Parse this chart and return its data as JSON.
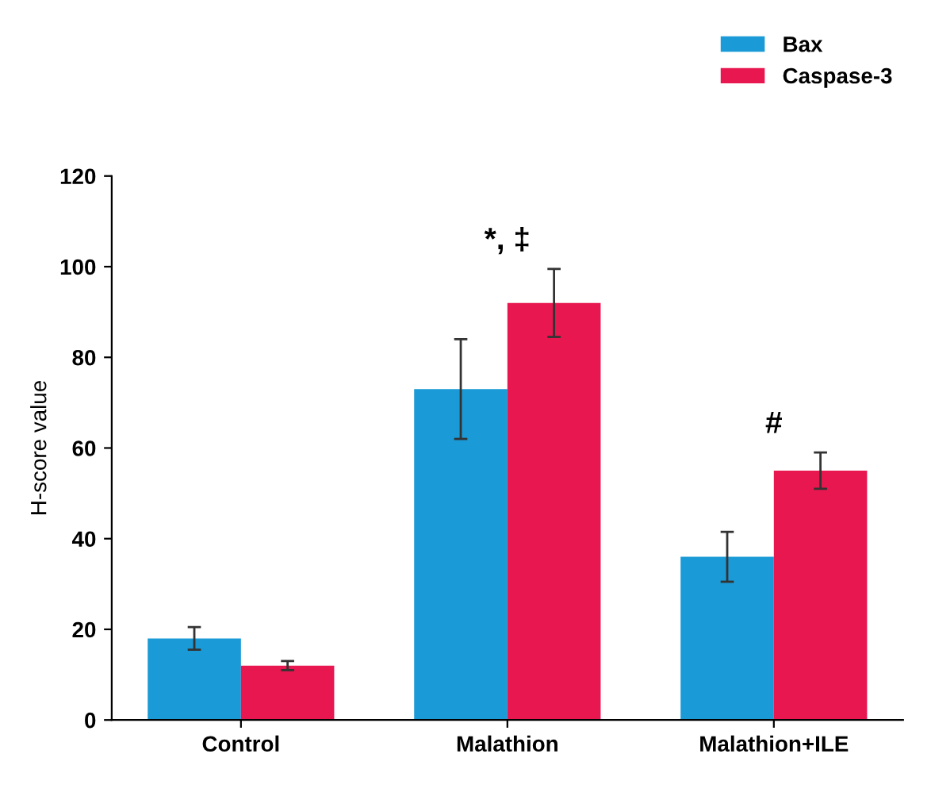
{
  "chart_data": {
    "type": "bar",
    "ylabel": "H-score value",
    "categories": [
      "Control",
      "Malathion",
      "Malathion+ILE"
    ],
    "series": [
      {
        "name": "Bax",
        "color": "#1a9ad6",
        "values": [
          18,
          73,
          36
        ],
        "errors": [
          2.5,
          11,
          5.5
        ]
      },
      {
        "name": "Caspase-3",
        "color": "#e8174f",
        "values": [
          12,
          92,
          55
        ],
        "errors": [
          1,
          7.5,
          4
        ]
      }
    ],
    "ylim": [
      0,
      120
    ],
    "yticks": [
      0,
      20,
      40,
      60,
      80,
      100,
      120
    ],
    "grid": false,
    "legend": "top right",
    "annotations": [
      "*, ‡",
      "#"
    ]
  }
}
